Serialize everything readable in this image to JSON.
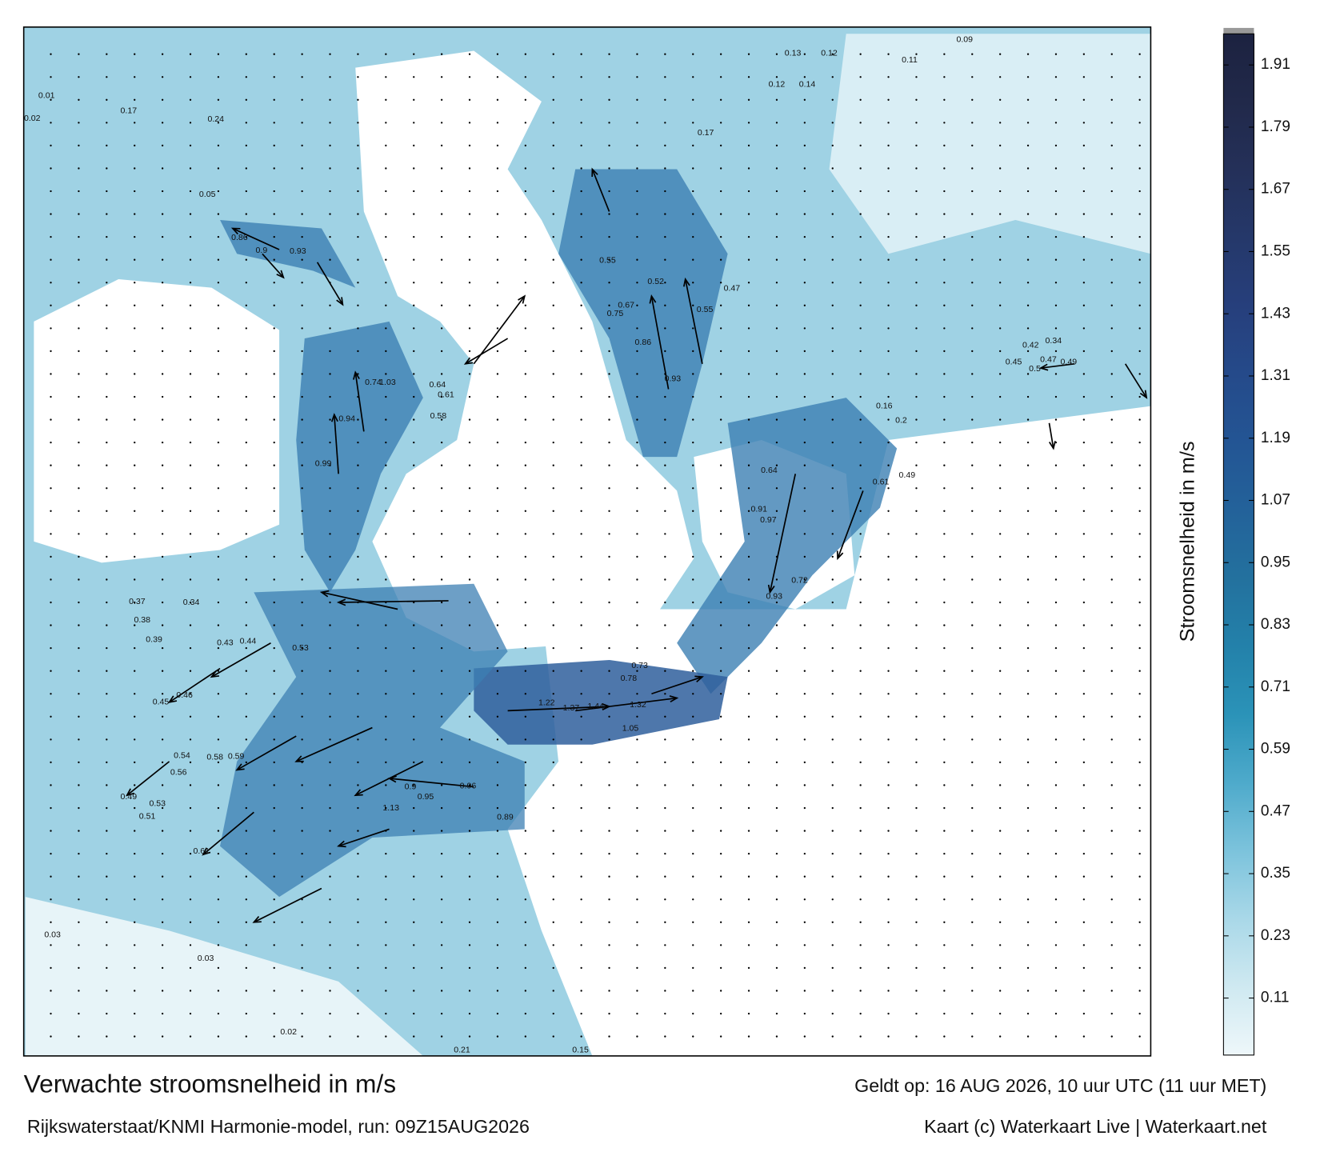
{
  "map": {
    "title": "Verwachte stroomsnelheid in m/s",
    "subtitle": "Rijkswaterstaat/KNMI Harmonie-model, run: 09Z15AUG2026",
    "valid": "Geldt op: 16 AUG 2026, 10 uur UTC (11 uur MET)",
    "credit": "Kaart (c) Waterkaart Live | Waterkaart.net",
    "labels": [
      0.86,
      0.9,
      0.93,
      1.03,
      0.74,
      0.64,
      0.61,
      0.58,
      0.99,
      0.94,
      0.55,
      0.52,
      0.67,
      0.75,
      0.86,
      0.93,
      0.47,
      0.55,
      0.64,
      0.91,
      0.97,
      0.72,
      0.93,
      0.49,
      0.61,
      0.37,
      0.34,
      0.38,
      0.39,
      0.43,
      0.44,
      0.53,
      0.45,
      0.46,
      0.54,
      0.58,
      0.59,
      0.56,
      0.49,
      0.53,
      0.51,
      0.61,
      0.96,
      0.89,
      0.95,
      1.13,
      0.9,
      1.22,
      1.37,
      1.44,
      1.32,
      1.05,
      0.78,
      0.73,
      0.03,
      0.03,
      0.02,
      0.21,
      0.15,
      0.13,
      0.12,
      0.09,
      0.11,
      0.14,
      0.12,
      0.17,
      0.2,
      0.16,
      0.5,
      0.47,
      0.45,
      0.49,
      0.42,
      0.34,
      0.01,
      0.02,
      0.17,
      0.24,
      0.05
    ]
  },
  "colorbar": {
    "label": "Stroomsnelheid in m/s",
    "lim": [
      0,
      1.97
    ],
    "ticks": [
      0.11,
      0.23,
      0.35,
      0.47,
      0.59,
      0.71,
      0.83,
      0.95,
      1.07,
      1.19,
      1.31,
      1.43,
      1.55,
      1.67,
      1.79,
      1.91
    ],
    "colors": [
      "#eef7fa",
      "#cfe9f1",
      "#a9d8e8",
      "#7cc3dc",
      "#4eaacb",
      "#2b93b8",
      "#2381aa",
      "#23719e",
      "#23629a",
      "#235594",
      "#254a8a",
      "#263f7c",
      "#25386a",
      "#243059",
      "#21294a",
      "#1c2240"
    ]
  }
}
